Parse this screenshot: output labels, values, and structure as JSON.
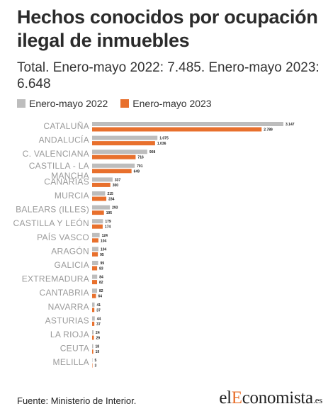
{
  "header": {
    "title": "Hechos conocidos por ocupación ilegal de inmuebles",
    "subtitle": "Total. Enero-mayo 2022: 7.485. Enero-mayo 2023: 6.648"
  },
  "colors": {
    "series_2022": "#bdbdbd",
    "series_2023": "#e8702d"
  },
  "chart_data": {
    "type": "bar",
    "orientation": "horizontal",
    "categories": [
      "CATALUÑA",
      "ANDALUCÍA",
      "C. VALENCIANA",
      "CASTILLA - LA MANCHA",
      "CANARIAS",
      "MURCIA",
      "BALEARS (ILLES)",
      "CASTILLA Y LEÓN",
      "PAÍS VASCO",
      "ARAGÓN",
      "GALICIA",
      "EXTREMADURA",
      "CANTABRIA",
      "NAVARRA",
      "ASTURIAS",
      "LA RIOJA",
      "CEUTA",
      "MELILLA"
    ],
    "series": [
      {
        "name": "Enero-mayo 2022",
        "values": [
          3147,
          1075,
          908,
          701,
          337,
          215,
          293,
          179,
          124,
          104,
          99,
          84,
          82,
          41,
          44,
          24,
          18,
          5
        ],
        "labels": [
          "3.147",
          "1.075",
          "908",
          "701",
          "337",
          "215",
          "293",
          "179",
          "124",
          "104",
          "99",
          "84",
          "82",
          "41",
          "44",
          "24",
          "18",
          "5"
        ]
      },
      {
        "name": "Enero-mayo 2023",
        "values": [
          2789,
          1036,
          716,
          649,
          300,
          234,
          195,
          174,
          104,
          95,
          83,
          82,
          64,
          37,
          37,
          29,
          19,
          3
        ],
        "labels": [
          "2.789",
          "1.036",
          "716",
          "649",
          "300",
          "234",
          "195",
          "174",
          "104",
          "95",
          "83",
          "82",
          "64",
          "37",
          "37",
          "29",
          "19",
          "3"
        ]
      }
    ],
    "legend_position": "top-left",
    "grid": false
  },
  "footer": {
    "source": "Fuente: Ministerio de Interior.",
    "logo_prefix": "el",
    "logo_accent": "E",
    "logo_mid": "conomista",
    "logo_suffix": ".es"
  }
}
